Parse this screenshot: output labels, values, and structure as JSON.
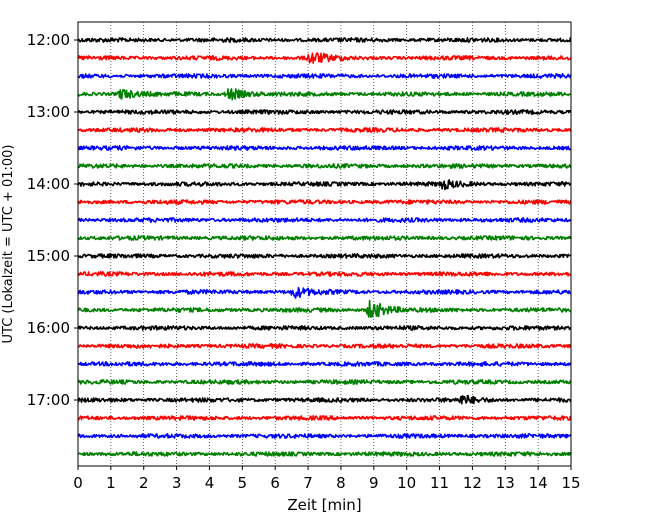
{
  "chart_data": {
    "type": "line",
    "title": "",
    "xlabel": "Zeit  [min]",
    "ylabel": "UTC (Lokalzeit = UTC + 01:00)",
    "xlim": [
      0,
      15
    ],
    "x_ticks": [
      0,
      1,
      2,
      3,
      4,
      5,
      6,
      7,
      8,
      9,
      10,
      11,
      12,
      13,
      14,
      15
    ],
    "x_tick_labels": [
      "0",
      "1",
      "2",
      "3",
      "4",
      "5",
      "6",
      "7",
      "8",
      "9",
      "10",
      "11",
      "12",
      "13",
      "14",
      "15"
    ],
    "y_tick_labels": [
      "12:00",
      "13:00",
      "14:00",
      "15:00",
      "16:00",
      "17:00"
    ],
    "grid": "x dotted",
    "colors": [
      "#000000",
      "#ff0000",
      "#0000ff",
      "#008000"
    ],
    "rows": [
      {
        "start": "12:00",
        "color": "#000000"
      },
      {
        "start": "12:15",
        "color": "#ff0000"
      },
      {
        "start": "12:30",
        "color": "#0000ff"
      },
      {
        "start": "12:45",
        "color": "#008000"
      },
      {
        "start": "13:00",
        "color": "#000000"
      },
      {
        "start": "13:15",
        "color": "#ff0000"
      },
      {
        "start": "13:30",
        "color": "#0000ff"
      },
      {
        "start": "13:45",
        "color": "#008000"
      },
      {
        "start": "14:00",
        "color": "#000000"
      },
      {
        "start": "14:15",
        "color": "#ff0000"
      },
      {
        "start": "14:30",
        "color": "#0000ff"
      },
      {
        "start": "14:45",
        "color": "#008000"
      },
      {
        "start": "15:00",
        "color": "#000000"
      },
      {
        "start": "15:15",
        "color": "#ff0000"
      },
      {
        "start": "15:30",
        "color": "#0000ff"
      },
      {
        "start": "15:45",
        "color": "#008000"
      },
      {
        "start": "16:00",
        "color": "#000000"
      },
      {
        "start": "16:15",
        "color": "#ff0000"
      },
      {
        "start": "16:30",
        "color": "#0000ff"
      },
      {
        "start": "16:45",
        "color": "#008000"
      },
      {
        "start": "17:00",
        "color": "#000000"
      },
      {
        "start": "17:15",
        "color": "#ff0000"
      },
      {
        "start": "17:30",
        "color": "#0000ff"
      },
      {
        "start": "17:45",
        "color": "#008000"
      }
    ],
    "events": [
      {
        "start": "15:45",
        "minute": 8.9,
        "amplitude": 10
      },
      {
        "start": "15:30",
        "minute": 6.6,
        "amplitude": 5
      },
      {
        "start": "12:45",
        "minute": 4.6,
        "amplitude": 6
      },
      {
        "start": "12:45",
        "minute": 1.3,
        "amplitude": 5
      },
      {
        "start": "12:15",
        "minute": 7.1,
        "amplitude": 6
      },
      {
        "start": "17:00",
        "minute": 11.7,
        "amplitude": 4
      },
      {
        "start": "14:00",
        "minute": 11.1,
        "amplitude": 4
      }
    ]
  }
}
